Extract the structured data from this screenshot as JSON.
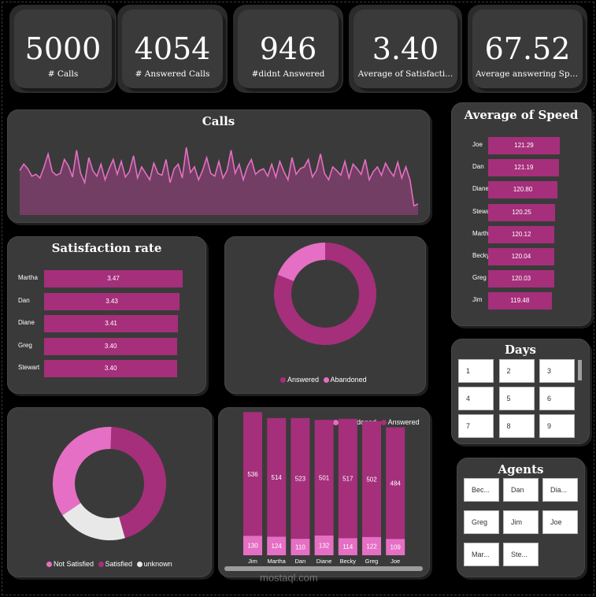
{
  "kpis": [
    {
      "value": "5000",
      "label": "# Calls"
    },
    {
      "value": "4054",
      "label": "# Answered Calls"
    },
    {
      "value": "946",
      "label": "#didnt Answered"
    },
    {
      "value": "3.40",
      "label": "Average of Satisfacti..."
    },
    {
      "value": "67.52",
      "label": "Average answering Speed"
    }
  ],
  "calls_chart": {
    "title": "Calls",
    "chart_data": {
      "type": "area",
      "series": [
        {
          "values": [
            48,
            55,
            50,
            42,
            44,
            40,
            52,
            66,
            47,
            43,
            45,
            60,
            53,
            41,
            70,
            45,
            35,
            62,
            48,
            42,
            55,
            38,
            50,
            60,
            44,
            58,
            41,
            47,
            64,
            40,
            52,
            45,
            38,
            56,
            45,
            43,
            60,
            35,
            50,
            55,
            40,
            73,
            46,
            52,
            38,
            48,
            62,
            45,
            42,
            58,
            40,
            48,
            70,
            45,
            55,
            38,
            52,
            60,
            44,
            48,
            50,
            42,
            55,
            41,
            58,
            47,
            38,
            62,
            44,
            50,
            52,
            60,
            41,
            48,
            66,
            45,
            38,
            52,
            48,
            43,
            58,
            40,
            55,
            50,
            44,
            60,
            38,
            47,
            52,
            43,
            56,
            48,
            42,
            57,
            40,
            52,
            38,
            10,
            12
          ]
        }
      ]
    }
  },
  "speed_chart": {
    "title": "Average of Speed",
    "chart_data": {
      "type": "bar",
      "categories": [
        "Joe",
        "Dan",
        "Diane",
        "Stewart",
        "Martha",
        "Becky",
        "Greg",
        "Jim"
      ],
      "values": [
        121.29,
        121.19,
        120.8,
        120.25,
        120.12,
        120.04,
        120.03,
        119.48
      ],
      "labels": [
        "121.29",
        "121.19",
        "120.80",
        "120.25",
        "120.12",
        "120.04",
        "120.03",
        "119.48"
      ]
    }
  },
  "satisfaction_chart": {
    "title": "Satisfaction rate",
    "chart_data": {
      "type": "bar",
      "categories": [
        "Martha",
        "Dan",
        "Diane",
        "Greg",
        "Stewart"
      ],
      "values": [
        3.47,
        3.43,
        3.41,
        3.4,
        3.4
      ],
      "labels": [
        "3.47",
        "3.43",
        "3.41",
        "3.40",
        "3.40"
      ]
    }
  },
  "answered_donut": {
    "chart_data": {
      "type": "pie",
      "categories": [
        "Answered",
        "Abandoned"
      ],
      "values": [
        4054,
        946
      ],
      "colors": [
        "#a52f7b",
        "#e56fc4"
      ]
    },
    "legend": [
      "Answered",
      "Abandoned"
    ]
  },
  "satisfaction_donut": {
    "chart_data": {
      "type": "pie",
      "categories": [
        "Not Satisfied",
        "Satisfied",
        "unknown"
      ],
      "values": [
        35,
        45,
        20
      ],
      "colors": [
        "#e56fc4",
        "#a52f7b",
        "#e8e8e8"
      ]
    },
    "legend": [
      "Not Satisfied",
      "Satisfied",
      "unknown"
    ]
  },
  "stacked_chart": {
    "legend": [
      "Abandoned",
      "Answered"
    ],
    "chart_data": {
      "type": "bar",
      "categories": [
        "Jim",
        "Martha",
        "Dan",
        "Diane",
        "Becky",
        "Greg",
        "Joe"
      ],
      "series": [
        {
          "name": "Abandoned",
          "values": [
            130,
            124,
            110,
            132,
            114,
            122,
            109
          ]
        },
        {
          "name": "Answered",
          "values": [
            536,
            514,
            523,
            501,
            517,
            502,
            484
          ]
        }
      ]
    }
  },
  "days": {
    "title": "Days",
    "items": [
      "1",
      "2",
      "3",
      "4",
      "5",
      "6",
      "7",
      "8",
      "9"
    ]
  },
  "agents": {
    "title": "Agents",
    "items": [
      "Bec...",
      "Dan",
      "Dia...",
      "Greg",
      "Jim",
      "Joe",
      "Mar...",
      "Ste..."
    ]
  },
  "watermark": "mostaql.com",
  "colors": {
    "answered": "#a52f7b",
    "abandoned": "#e56fc4",
    "unknown": "#e8e8e8",
    "card": "#3b3a3a"
  }
}
